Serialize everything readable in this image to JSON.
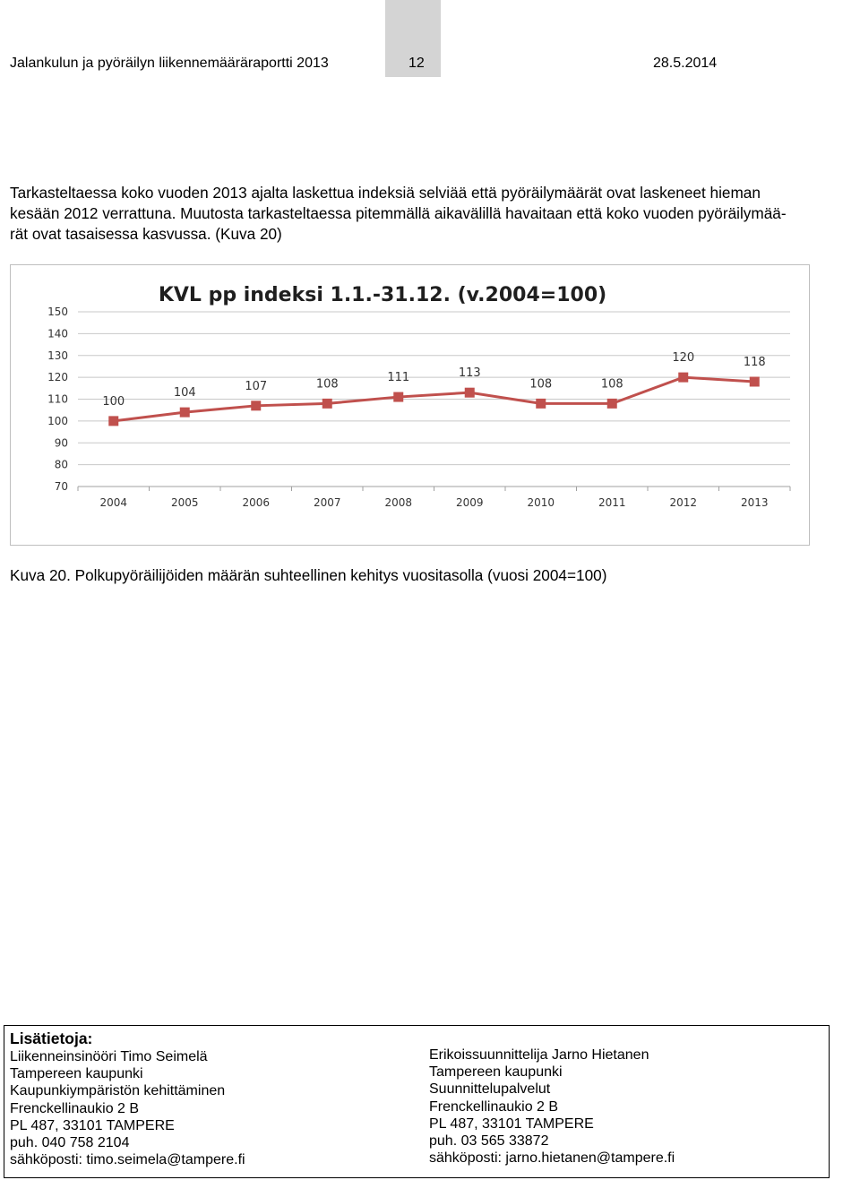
{
  "header": {
    "title": "Jalankulun ja pyöräilyn liikennemääräraportti 2013",
    "page_number": "12",
    "date": "28.5.2014"
  },
  "body": {
    "line1": "Tarkasteltaessa koko vuoden 2013 ajalta laskettua indeksiä selviää että pyöräilymäärät ovat laskeneet hieman",
    "line2": "kesään 2012 verrattuna. Muutosta tarkasteltaessa pitemmällä aikavälillä havaitaan että koko vuoden pyöräilymää-",
    "line3": "rät ovat tasaisessa kasvussa. (Kuva 20)"
  },
  "chart_data": {
    "type": "line",
    "title": "KVL pp indeksi 1.1.-31.12. (v.2004=100)",
    "xlabel": "",
    "ylabel": "",
    "categories": [
      "2004",
      "2005",
      "2006",
      "2007",
      "2008",
      "2009",
      "2010",
      "2011",
      "2012",
      "2013"
    ],
    "series": [
      {
        "values": [
          100,
          104,
          107,
          108,
          111,
          113,
          108,
          108,
          120,
          118
        ]
      }
    ],
    "data_labels": [
      "100",
      "104",
      "107",
      "108",
      "111",
      "113",
      "108",
      "108",
      "120",
      "118"
    ],
    "yticks": [
      "70",
      "80",
      "90",
      "100",
      "110",
      "120",
      "130",
      "140",
      "150"
    ],
    "ylim": [
      70,
      150
    ],
    "grid": true,
    "legend": "none",
    "line_color": "#c0504d",
    "marker_color": "#c0504d"
  },
  "caption": "Kuva 20. Polkupyöräilijöiden määrän suhteellinen kehitys vuositasolla (vuosi 2004=100)",
  "contact": {
    "heading": "Lisätietoja:",
    "left": [
      "Liikenneinsinööri Timo Seimelä",
      "Tampereen kaupunki",
      "Kaupunkiympäristön kehittäminen",
      "Frenckellinaukio 2 B",
      "PL 487, 33101 TAMPERE",
      "puh. 040 758 2104",
      "sähköposti: timo.seimela@tampere.fi"
    ],
    "right": [
      "Erikoissuunnittelija Jarno Hietanen",
      "Tampereen kaupunki",
      "Suunnittelupalvelut",
      "Frenckellinaukio 2 B",
      "PL 487, 33101 TAMPERE",
      "puh. 03 565 33872",
      "sähköposti: jarno.hietanen@tampere.fi"
    ]
  }
}
